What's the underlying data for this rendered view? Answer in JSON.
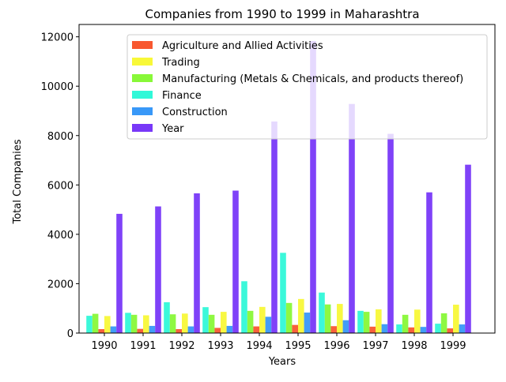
{
  "chart_data": {
    "type": "bar",
    "title": "Companies from 1990 to 1999 in Maharashtra",
    "xlabel": "Years",
    "ylabel": "Total Companies",
    "ylim": [
      0,
      12500
    ],
    "yticks": [
      0,
      2000,
      4000,
      6000,
      8000,
      10000,
      12000
    ],
    "categories": [
      "1990",
      "1991",
      "1992",
      "1993",
      "1994",
      "1995",
      "1996",
      "1997",
      "1998",
      "1999"
    ],
    "legend_position": "top-right",
    "grid": false,
    "series": [
      {
        "name": "Finance",
        "color": "#30f8d8",
        "values": [
          700,
          820,
          1250,
          1050,
          2100,
          3250,
          1640,
          900,
          350,
          380
        ]
      },
      {
        "name": "Manufacturing (Metals & Chemicals, and products thereof)",
        "color": "#88f838",
        "values": [
          780,
          740,
          760,
          740,
          900,
          1220,
          1160,
          860,
          740,
          800
        ]
      },
      {
        "name": "Agriculture and Allied Activities",
        "color": "#f85830",
        "values": [
          160,
          170,
          160,
          210,
          270,
          330,
          280,
          260,
          230,
          190
        ]
      },
      {
        "name": "Trading",
        "color": "#f8f838",
        "values": [
          690,
          720,
          790,
          860,
          1060,
          1380,
          1180,
          960,
          950,
          1150
        ]
      },
      {
        "name": "Construction",
        "color": "#3898f8",
        "values": [
          270,
          290,
          270,
          290,
          660,
          830,
          520,
          360,
          250,
          350
        ]
      },
      {
        "name": "Year",
        "color": "#7838f8",
        "values": [
          4830,
          5130,
          5660,
          5770,
          8570,
          11830,
          9280,
          8070,
          5700,
          6820
        ]
      }
    ],
    "legend_order": [
      "Agriculture and Allied Activities",
      "Trading",
      "Manufacturing (Metals & Chemicals, and products thereof)",
      "Finance",
      "Construction",
      "Year"
    ]
  }
}
